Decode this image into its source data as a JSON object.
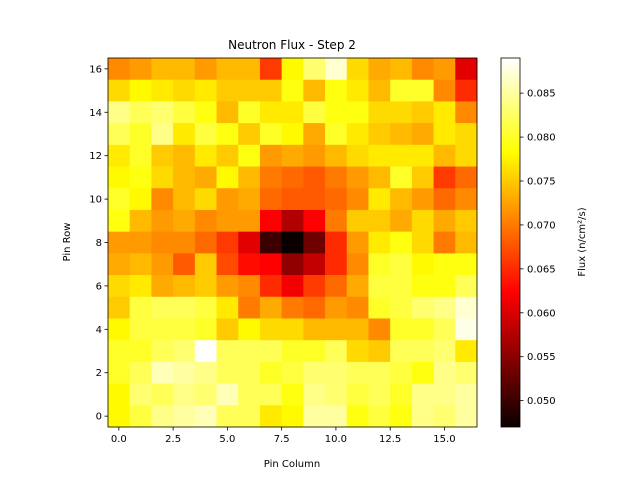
{
  "chart_data": {
    "type": "heatmap",
    "title": "Neutron Flux - Step 2",
    "xlabel": "Pin Column",
    "ylabel": "Pin Row",
    "colorbar_label": "Flux (n/cm²/s)",
    "colormap": "hot",
    "vmin": 0.047,
    "vmax": 0.089,
    "xlim": [
      -0.5,
      16.5
    ],
    "ylim": [
      -0.5,
      16.5
    ],
    "xticks": [
      0,
      2.5,
      5,
      7.5,
      10,
      12.5,
      15
    ],
    "xtick_labels": [
      "0.0",
      "2.5",
      "5.0",
      "7.5",
      "10.0",
      "12.5",
      "15.0"
    ],
    "yticks": [
      0,
      2,
      4,
      6,
      8,
      10,
      12,
      14,
      16
    ],
    "ytick_labels": [
      "0",
      "2",
      "4",
      "6",
      "8",
      "10",
      "12",
      "14",
      "16"
    ],
    "cbar_ticks": [
      0.05,
      0.055,
      0.06,
      0.065,
      0.07,
      0.075,
      0.08,
      0.085
    ],
    "cbar_tick_labels": [
      "0.050",
      "0.055",
      "0.060",
      "0.065",
      "0.070",
      "0.075",
      "0.080",
      "0.085"
    ],
    "rows_top_to_bottom": [
      [
        0.071,
        0.072,
        0.074,
        0.074,
        0.072,
        0.074,
        0.074,
        0.066,
        0.078,
        0.083,
        0.087,
        0.076,
        0.073,
        0.074,
        0.071,
        0.072,
        0.06
      ],
      [
        0.076,
        0.078,
        0.077,
        0.076,
        0.077,
        0.075,
        0.075,
        0.075,
        0.079,
        0.074,
        0.079,
        0.077,
        0.074,
        0.08,
        0.08,
        0.071,
        0.065
      ],
      [
        0.084,
        0.082,
        0.083,
        0.081,
        0.079,
        0.074,
        0.08,
        0.077,
        0.077,
        0.081,
        0.079,
        0.079,
        0.076,
        0.076,
        0.075,
        0.077,
        0.071
      ],
      [
        0.082,
        0.08,
        0.084,
        0.077,
        0.081,
        0.079,
        0.075,
        0.08,
        0.078,
        0.073,
        0.08,
        0.077,
        0.075,
        0.074,
        0.073,
        0.077,
        0.076
      ],
      [
        0.077,
        0.08,
        0.075,
        0.074,
        0.077,
        0.075,
        0.079,
        0.072,
        0.073,
        0.072,
        0.074,
        0.076,
        0.077,
        0.077,
        0.077,
        0.074,
        0.076
      ],
      [
        0.078,
        0.079,
        0.076,
        0.074,
        0.073,
        0.078,
        0.074,
        0.07,
        0.069,
        0.068,
        0.07,
        0.072,
        0.074,
        0.08,
        0.075,
        0.066,
        0.069
      ],
      [
        0.08,
        0.078,
        0.071,
        0.074,
        0.076,
        0.072,
        0.073,
        0.069,
        0.068,
        0.068,
        0.069,
        0.071,
        0.077,
        0.074,
        0.072,
        0.069,
        0.071
      ],
      [
        0.079,
        0.074,
        0.072,
        0.073,
        0.071,
        0.072,
        0.072,
        0.062,
        0.057,
        0.062,
        0.07,
        0.075,
        0.075,
        0.073,
        0.076,
        0.073,
        0.075
      ],
      [
        0.072,
        0.072,
        0.071,
        0.071,
        0.069,
        0.066,
        0.06,
        0.05,
        0.047,
        0.053,
        0.065,
        0.072,
        0.077,
        0.079,
        0.076,
        0.07,
        0.074
      ],
      [
        0.073,
        0.074,
        0.072,
        0.068,
        0.075,
        0.067,
        0.063,
        0.062,
        0.055,
        0.058,
        0.065,
        0.071,
        0.08,
        0.081,
        0.078,
        0.079,
        0.079
      ],
      [
        0.076,
        0.077,
        0.073,
        0.074,
        0.075,
        0.072,
        0.071,
        0.065,
        0.061,
        0.066,
        0.069,
        0.073,
        0.081,
        0.081,
        0.079,
        0.079,
        0.082
      ],
      [
        0.075,
        0.081,
        0.082,
        0.082,
        0.081,
        0.077,
        0.07,
        0.073,
        0.07,
        0.069,
        0.072,
        0.071,
        0.08,
        0.081,
        0.083,
        0.084,
        0.087
      ],
      [
        0.078,
        0.081,
        0.081,
        0.081,
        0.08,
        0.075,
        0.078,
        0.076,
        0.076,
        0.074,
        0.074,
        0.074,
        0.071,
        0.08,
        0.08,
        0.082,
        0.088
      ],
      [
        0.08,
        0.08,
        0.082,
        0.083,
        0.089,
        0.082,
        0.082,
        0.082,
        0.08,
        0.08,
        0.082,
        0.076,
        0.075,
        0.082,
        0.082,
        0.083,
        0.077
      ],
      [
        0.08,
        0.082,
        0.086,
        0.085,
        0.084,
        0.082,
        0.082,
        0.08,
        0.081,
        0.083,
        0.083,
        0.082,
        0.082,
        0.081,
        0.079,
        0.084,
        0.083
      ],
      [
        0.078,
        0.083,
        0.082,
        0.084,
        0.083,
        0.086,
        0.082,
        0.082,
        0.079,
        0.084,
        0.083,
        0.081,
        0.082,
        0.08,
        0.084,
        0.084,
        0.085
      ],
      [
        0.078,
        0.081,
        0.084,
        0.085,
        0.086,
        0.082,
        0.082,
        0.077,
        0.078,
        0.085,
        0.085,
        0.079,
        0.081,
        0.079,
        0.084,
        0.083,
        0.085
      ]
    ]
  }
}
